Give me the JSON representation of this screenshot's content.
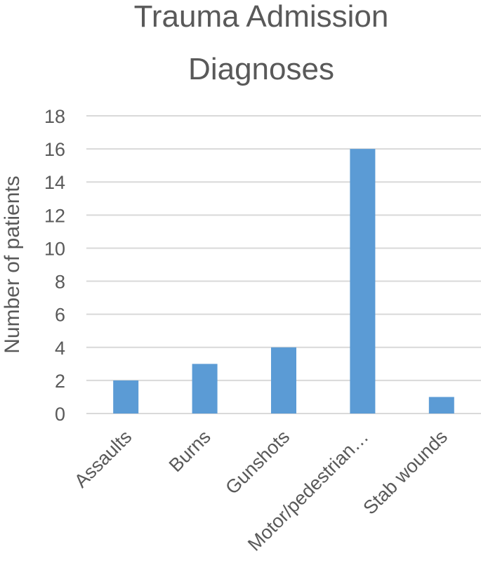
{
  "chart_data": {
    "type": "bar",
    "title_lines": [
      "Trauma Admission",
      "Diagnoses"
    ],
    "xlabel": "",
    "ylabel": "Number of patients",
    "categories": [
      "Assaults",
      "Burns",
      "Gunshots",
      "Motor/pedestrian…",
      "Stab wounds"
    ],
    "values": [
      2,
      3,
      4,
      16,
      1
    ],
    "ylim": [
      0,
      18
    ],
    "yticks": [
      0,
      2,
      4,
      6,
      8,
      10,
      12,
      14,
      16,
      18
    ],
    "grid": true,
    "legend": "none",
    "bar_color": "#5b9bd5"
  }
}
